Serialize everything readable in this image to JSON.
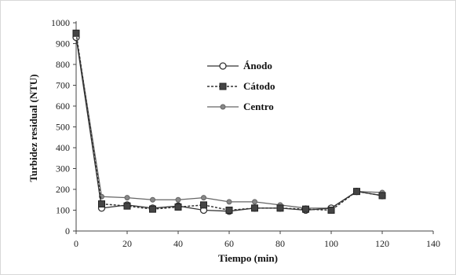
{
  "chart_data": {
    "type": "line",
    "title": "",
    "xlabel": "Tiempo (min)",
    "ylabel": "Turbidez residual (NTU)",
    "xlim": [
      0,
      140
    ],
    "ylim": [
      0,
      1000
    ],
    "xticks": [
      0,
      20,
      40,
      60,
      80,
      100,
      120,
      140
    ],
    "yticks": [
      0,
      100,
      200,
      300,
      400,
      500,
      600,
      700,
      800,
      900,
      1000
    ],
    "grid": false,
    "legend_position": "upper-center",
    "series": [
      {
        "name": "Ánodo",
        "marker": "circle-open",
        "dash": "solid",
        "color": "#333333",
        "x": [
          0,
          10,
          20,
          30,
          40,
          50,
          60,
          70,
          80,
          90,
          100,
          110,
          120
        ],
        "y": [
          930,
          110,
          125,
          110,
          120,
          100,
          95,
          110,
          110,
          100,
          110,
          190,
          170
        ]
      },
      {
        "name": "Cátodo",
        "marker": "square-filled",
        "dash": "dashed",
        "color": "#333333",
        "x": [
          0,
          10,
          20,
          30,
          40,
          50,
          60,
          70,
          80,
          90,
          100,
          110,
          120
        ],
        "y": [
          950,
          130,
          120,
          105,
          115,
          125,
          100,
          110,
          110,
          105,
          100,
          190,
          170
        ]
      },
      {
        "name": "Centro",
        "marker": "circle-small",
        "dash": "solid",
        "color": "#666666",
        "x": [
          0,
          10,
          20,
          30,
          40,
          50,
          60,
          70,
          80,
          90,
          100,
          110,
          120
        ],
        "y": [
          940,
          165,
          160,
          150,
          150,
          160,
          140,
          140,
          125,
          110,
          110,
          190,
          185
        ]
      }
    ]
  }
}
